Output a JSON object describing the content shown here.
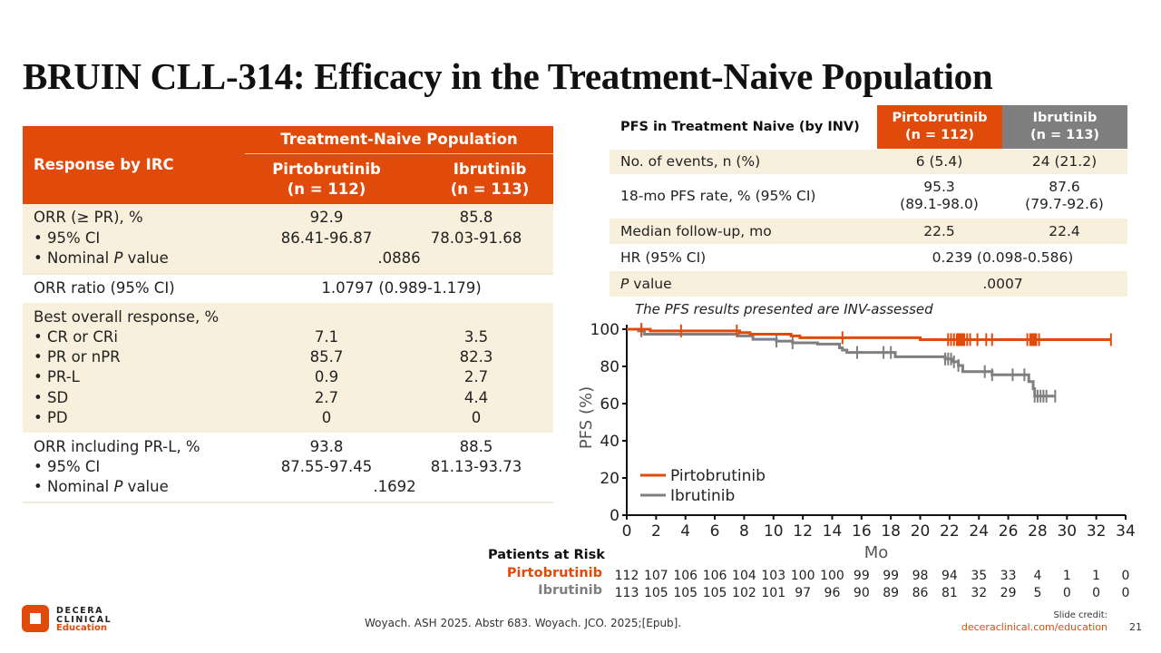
{
  "title": "BRUIN CLL-314: Efficacy in the Treatment-Naive Population",
  "colors": {
    "accent": "#e04b0b",
    "gray": "#7f7f7f",
    "cream": "#f8f0dc"
  },
  "left_table": {
    "header_label": "Response by IRC",
    "group_header": "Treatment-Naive Population",
    "col1": {
      "name": "Pirtobrutinib",
      "n": "(n = 112)"
    },
    "col2": {
      "name": "Ibrutinib",
      "n": "(n = 113)"
    },
    "sections": [
      {
        "rows": [
          {
            "label": "ORR (≥ PR), %",
            "v1": "92.9",
            "v2": "85.8"
          },
          {
            "label": "•  95% CI",
            "v1": "86.41-96.87",
            "v2": "78.03-91.68"
          },
          {
            "label_pre": "•  Nominal ",
            "label_it": "P",
            "label_post": " value",
            "merged": ".0886"
          }
        ]
      },
      {
        "rows": [
          {
            "label": "ORR ratio (95% CI)",
            "merged": "1.0797 (0.989-1.179)"
          }
        ]
      },
      {
        "rows": [
          {
            "label": "Best overall response, %"
          },
          {
            "label": "•  CR or CRi",
            "v1": "7.1",
            "v2": "3.5"
          },
          {
            "label": "•  PR or nPR",
            "v1": "85.7",
            "v2": "82.3"
          },
          {
            "label": "•  PR-L",
            "v1": "0.9",
            "v2": "2.7"
          },
          {
            "label": "•  SD",
            "v1": "2.7",
            "v2": "4.4"
          },
          {
            "label": "•  PD",
            "v1": "0",
            "v2": "0"
          }
        ]
      },
      {
        "rows": [
          {
            "label": "ORR including PR-L, %",
            "v1": "93.8",
            "v2": "88.5"
          },
          {
            "label": "•  95% CI",
            "v1": "87.55-97.45",
            "v2": "81.13-93.73"
          },
          {
            "label_pre": "•  Nominal ",
            "label_it": "P",
            "label_post": " value",
            "merged": ".1692"
          }
        ]
      }
    ]
  },
  "right_table": {
    "header_label": "PFS in Treatment Naive (by INV)",
    "col1": {
      "name": "Pirtobrutinib",
      "n": "(n = 112)"
    },
    "col2": {
      "name": "Ibrutinib",
      "n": "(n = 113)"
    },
    "rows": [
      {
        "label": "No. of events, n (%)",
        "v1": "6 (5.4)",
        "v2": "24 (21.2)"
      },
      {
        "label": "18-mo PFS rate, % (95% CI)",
        "v1a": "95.3",
        "v1b": "(89.1-98.0)",
        "v2a": "87.6",
        "v2b": "(79.7-92.6)"
      },
      {
        "label": "Median follow-up, mo",
        "v1": "22.5",
        "v2": "22.4"
      },
      {
        "label": "HR (95% CI)",
        "merged": "0.239 (0.098-0.586)"
      },
      {
        "label_it": "P",
        "label_post": " value",
        "merged": ".0007"
      }
    ]
  },
  "chart_data": {
    "type": "line",
    "subtitle": "The PFS results presented are INV-assessed",
    "xlabel": "Mo",
    "ylabel": "PFS (%)",
    "xlim": [
      0,
      34
    ],
    "ylim": [
      0,
      100
    ],
    "xticks": [
      0,
      2,
      4,
      6,
      8,
      10,
      12,
      14,
      16,
      18,
      20,
      22,
      24,
      26,
      28,
      30,
      32,
      34
    ],
    "yticks": [
      0,
      20,
      40,
      60,
      80,
      100
    ],
    "legend_position": "bottom-left",
    "series": [
      {
        "name": "Pirtobrutinib",
        "color": "#e04b0b",
        "steps": [
          [
            0,
            100
          ],
          [
            1.6,
            99.1
          ],
          [
            7.7,
            98.2
          ],
          [
            8.4,
            97.3
          ],
          [
            11.2,
            96.4
          ],
          [
            11.8,
            95.4
          ],
          [
            20,
            94.4
          ],
          [
            33,
            94.4
          ]
        ],
        "censors": [
          1.0,
          3.7,
          7.5,
          14.7,
          21.9,
          22.1,
          22.3,
          22.5,
          22.6,
          22.7,
          22.8,
          22.9,
          23.0,
          23.2,
          23.4,
          23.9,
          24.5,
          24.9,
          27.3,
          27.5,
          27.6,
          27.7,
          27.8,
          27.9,
          28.1,
          33.0
        ]
      },
      {
        "name": "Ibrutinib",
        "color": "#7f7f7f",
        "steps": [
          [
            0,
            100
          ],
          [
            0.8,
            99.1
          ],
          [
            1.2,
            97.3
          ],
          [
            7.6,
            96.4
          ],
          [
            8.6,
            94.6
          ],
          [
            10.2,
            93.6
          ],
          [
            11.3,
            92.7
          ],
          [
            13.0,
            92.0
          ],
          [
            14.5,
            90.0
          ],
          [
            14.7,
            88.8
          ],
          [
            15.0,
            87.5
          ],
          [
            18.3,
            85.2
          ],
          [
            21.7,
            84.0
          ],
          [
            22.2,
            82.5
          ],
          [
            22.6,
            80.5
          ],
          [
            22.9,
            77.2
          ],
          [
            24.9,
            75.5
          ],
          [
            27.4,
            71.8
          ],
          [
            27.7,
            68.0
          ],
          [
            27.8,
            64.0
          ],
          [
            29.2,
            64.0
          ]
        ],
        "censors": [
          1.0,
          10.2,
          11.3,
          15.7,
          17.5,
          18.0,
          21.7,
          21.9,
          22.1,
          22.3,
          22.6,
          24.4,
          24.9,
          26.3,
          27.1,
          27.8,
          28.0,
          28.2,
          28.4,
          28.6,
          29.2
        ]
      }
    ],
    "risk_table": {
      "title": "Patients at Risk",
      "rows": [
        {
          "name": "Pirtobrutinib",
          "color": "#e04b0b",
          "values": [
            112,
            107,
            106,
            106,
            104,
            103,
            100,
            100,
            99,
            99,
            98,
            94,
            35,
            33,
            4,
            1,
            1,
            0
          ]
        },
        {
          "name": "Ibrutinib",
          "color": "#7f7f7f",
          "values": [
            113,
            105,
            105,
            105,
            102,
            101,
            97,
            96,
            90,
            89,
            86,
            81,
            32,
            29,
            5,
            0,
            0,
            0
          ]
        }
      ]
    }
  },
  "footer": {
    "reference": "Woyach. ASH 2025. Abstr 683. Woyach. JCO. 2025;[Epub].",
    "credit_label": "Slide credit:",
    "credit_link": "deceraclinical.com/education",
    "page_number": "21",
    "logo": {
      "line1": "DECERA",
      "line2": "CLINICAL",
      "line3": "Education"
    }
  }
}
